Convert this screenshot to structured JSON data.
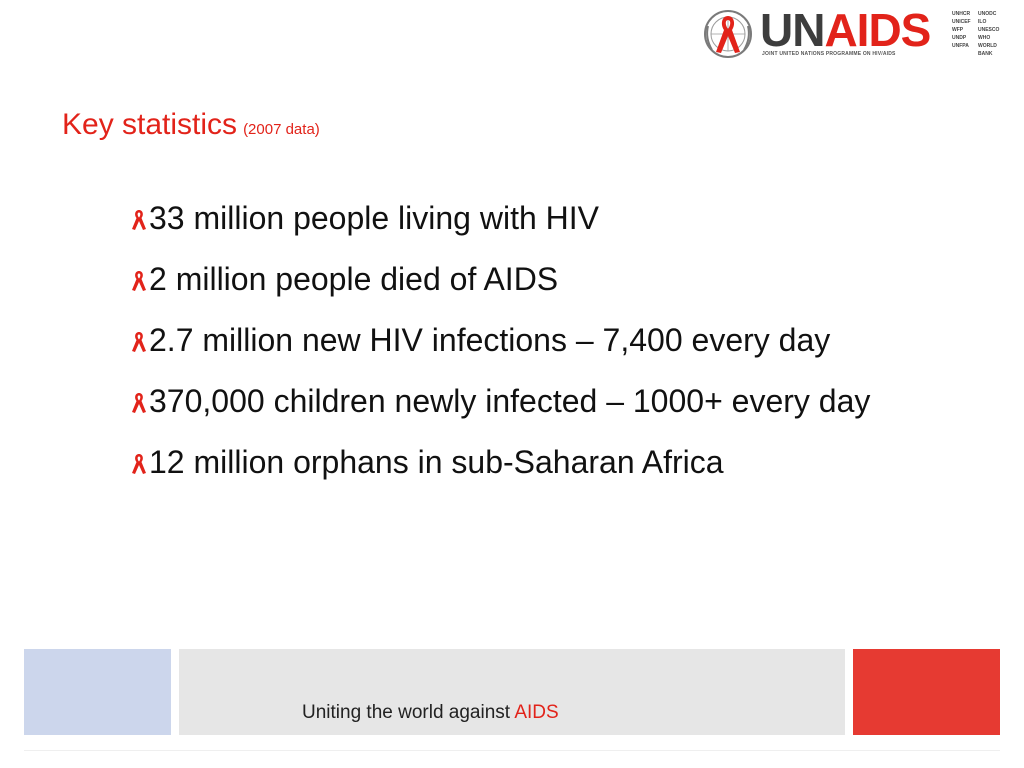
{
  "logo": {
    "wordmark_part1": "UN",
    "wordmark_part2": "AIDS",
    "tagline": "JOINT UNITED NATIONS PROGRAMME ON HIV/AIDS",
    "cosponsors": [
      "UNHCR",
      "UNODC",
      "UNICEF",
      "ILO",
      "WFP",
      "UNESCO",
      "UNDP",
      "WHO",
      "UNFPA",
      "WORLD BANK"
    ],
    "brand_red": "#e2231a",
    "brand_gray": "#3d3d3d",
    "emblem_icon": "un-emblem-with-red-ribbon-icon"
  },
  "title": {
    "main": "Key statistics",
    "sub": "(2007 data)",
    "color": "#e2231a"
  },
  "bullets": {
    "icon": "red-ribbon-icon",
    "items": [
      "33 million people living with HIV",
      "2 million people died of AIDS",
      "2.7 million new HIV infections – 7,400 every day",
      "370,000 children newly infected – 1000+ every day",
      "12 million orphans in sub-Saharan Africa"
    ]
  },
  "footer": {
    "text": "Uniting the world against",
    "accent": "AIDS",
    "colors": {
      "left_block": "#ccd6ec",
      "middle_block": "#e6e6e6",
      "right_block": "#e63a32"
    }
  }
}
